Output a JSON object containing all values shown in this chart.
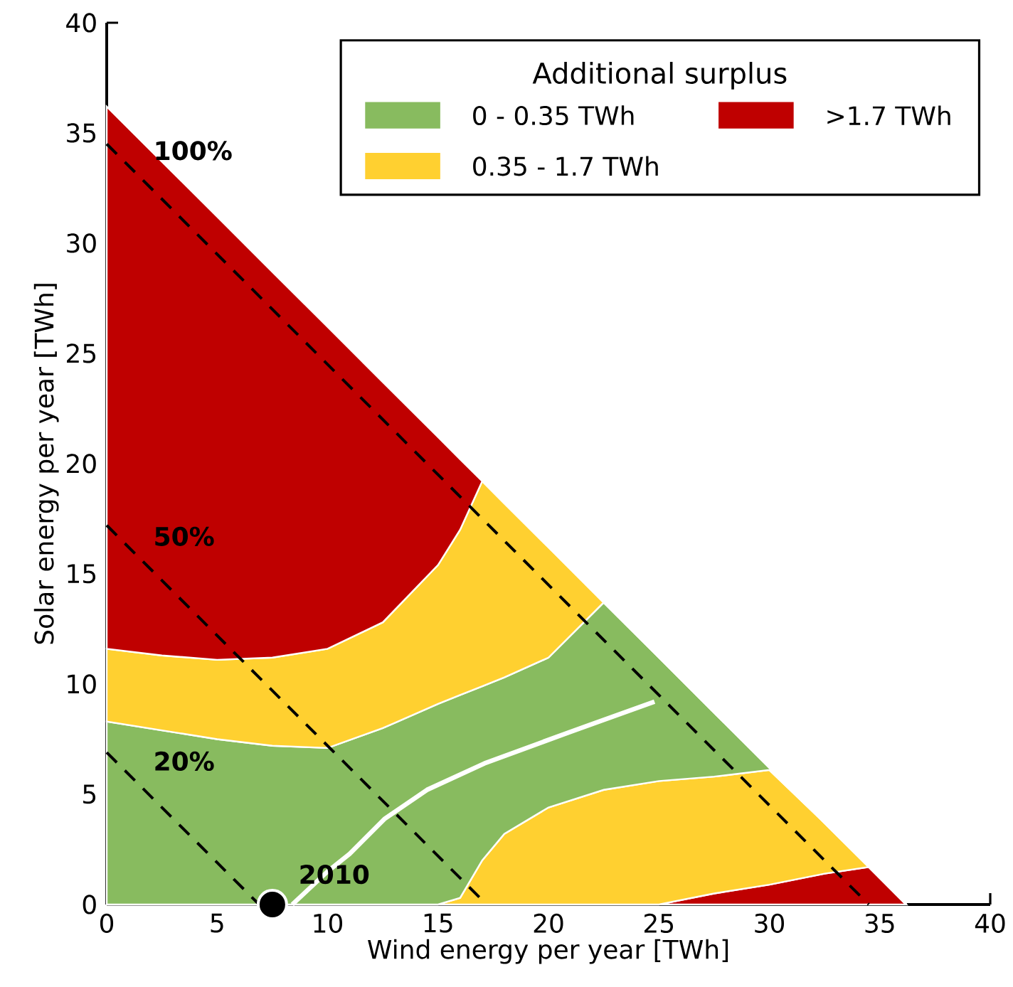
{
  "chart_data": {
    "type": "area",
    "stacked": true,
    "xlabel": "Wind energy per year [TWh]",
    "ylabel": "Solar energy per year [TWh]",
    "legend_title": "Additional surplus",
    "legend": "top right",
    "x": [
      0,
      2.5,
      5,
      7.5,
      10,
      12.5,
      15,
      16,
      17,
      18,
      20,
      22.5,
      25,
      27.5,
      30,
      32.5,
      34.5,
      36.2
    ],
    "xlim": [
      0,
      40
    ],
    "ylim": [
      0,
      40
    ],
    "xticks": [
      0,
      5,
      10,
      15,
      20,
      25,
      30,
      35,
      40
    ],
    "yticks": [
      0,
      5,
      10,
      15,
      20,
      25,
      30,
      35,
      40
    ],
    "series": [
      {
        "color": "#bf0000",
        "values": [
          0,
          0,
          0,
          0,
          0,
          0,
          0,
          0,
          0,
          0,
          0,
          0,
          0,
          0.5,
          0.9,
          1.4,
          1.7,
          0
        ]
      },
      {
        "color": "#ffd030",
        "values": [
          0,
          0,
          0,
          0,
          0,
          0,
          0,
          0.3,
          2.0,
          3.2,
          4.4,
          5.2,
          5.6,
          5.3,
          5.2,
          2.3,
          0,
          0
        ]
      },
      {
        "name": "0 - 0.35 TWh",
        "color": "#88bb5f",
        "values": [
          8.3,
          7.9,
          7.5,
          7.2,
          7.1,
          8.0,
          9.1,
          9.2,
          7.9,
          7.1,
          6.8,
          8.5,
          5.6,
          2.9,
          0.1,
          0,
          0,
          0
        ]
      },
      {
        "name": "0.35 - 1.7 TWh",
        "color": "#ffd030",
        "values": [
          3.3,
          3.4,
          3.6,
          4.0,
          4.5,
          4.8,
          6.3,
          7.5,
          9.3,
          7.9,
          5.0,
          0,
          0,
          0,
          0,
          0,
          0,
          0
        ]
      },
      {
        "name": ">1.7 TWh",
        "color": "#bf0000",
        "values": [
          24.6,
          22.4,
          20.1,
          17.5,
          14.6,
          10.9,
          5.8,
          3.2,
          0,
          0,
          0,
          0,
          0,
          0,
          0,
          0,
          0,
          0
        ]
      },
      {
        "type": "line",
        "color": "#ffffff",
        "x": [
          8.4,
          10,
          11,
          12.6,
          14.5,
          17.1,
          20.9,
          24.8
        ],
        "values": [
          0,
          1.5,
          2.3,
          3.9,
          5.2,
          6.4,
          7.8,
          9.2
        ]
      },
      {
        "type": "line",
        "color": "#000000",
        "line_style": "dashed",
        "x": [
          0,
          34.5
        ],
        "values": [
          34.5,
          0
        ]
      },
      {
        "type": "line",
        "color": "#000000",
        "line_style": "dashed",
        "x": [
          0,
          17.2
        ],
        "values": [
          17.2,
          0
        ]
      },
      {
        "type": "line",
        "color": "#000000",
        "line_style": "dashed",
        "x": [
          0,
          6.9
        ],
        "values": [
          6.9,
          0
        ]
      },
      {
        "type": "scatter",
        "color": "#000000",
        "marker": "circle",
        "x": [
          7.5
        ],
        "values": [
          0
        ]
      }
    ],
    "annotations": [
      "100%",
      "50%",
      "20%",
      {
        "text": "2010",
        "x": 7.5,
        "y": 0
      }
    ]
  }
}
